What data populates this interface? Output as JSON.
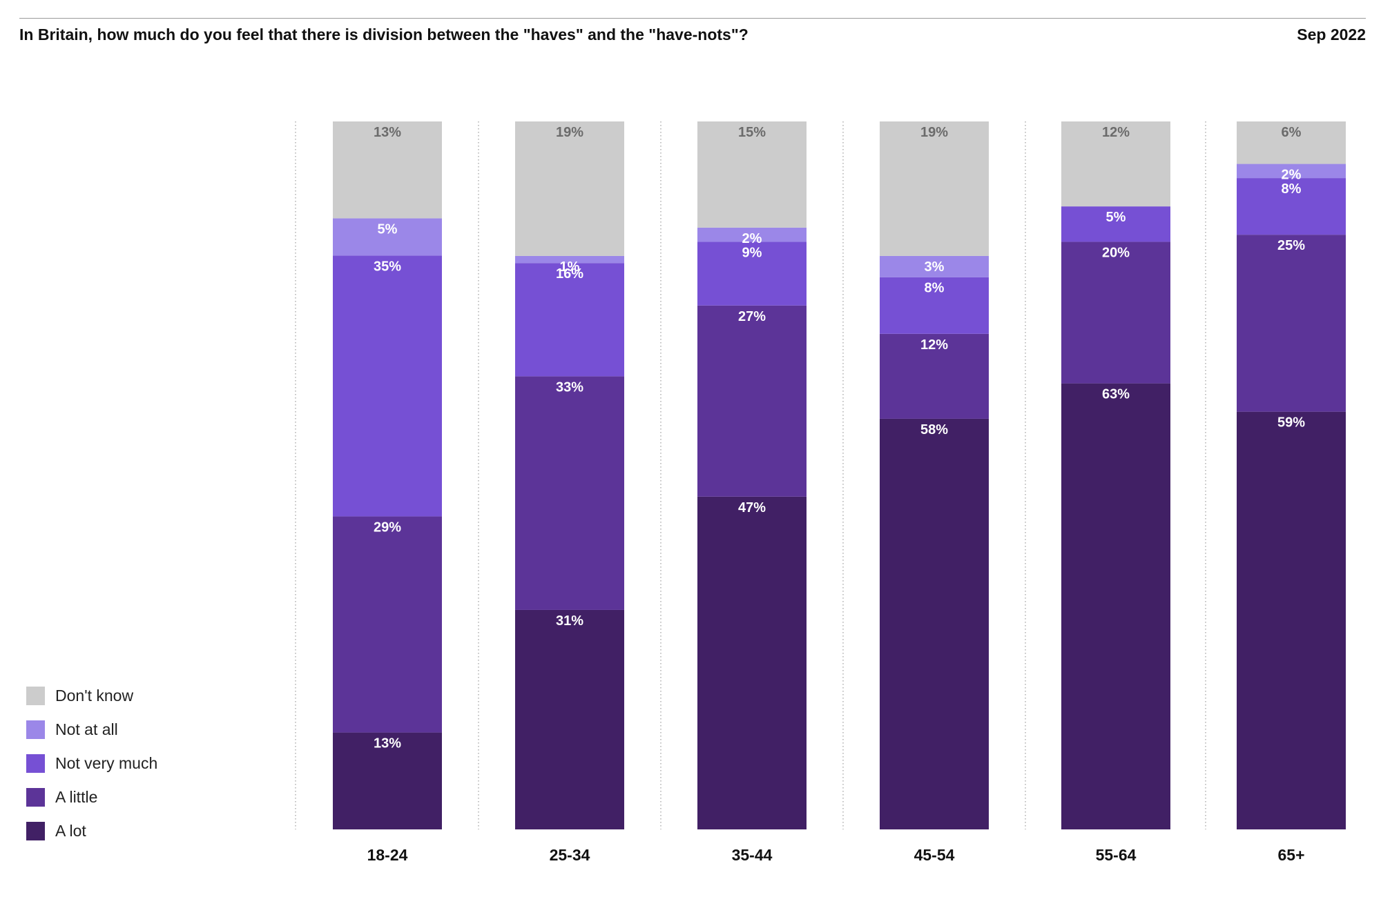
{
  "header": {
    "title": "In Britain, how much do you feel that there is division between the \"haves\" and the \"have-nots\"?",
    "date": "Sep 2022"
  },
  "legend": [
    {
      "label": "Don't know",
      "color": "#cccccc"
    },
    {
      "label": "Not at all",
      "color": "#9b87e8"
    },
    {
      "label": "Not very much",
      "color": "#7650d4"
    },
    {
      "label": "A little",
      "color": "#5c3498"
    },
    {
      "label": "A lot",
      "color": "#412065"
    }
  ],
  "chart_data": {
    "type": "bar",
    "stacked": true,
    "categories": [
      "18-24",
      "25-34",
      "35-44",
      "45-54",
      "55-64",
      "65+"
    ],
    "series": [
      {
        "name": "A lot",
        "color": "#412065",
        "values": [
          13,
          31,
          47,
          58,
          63,
          59
        ]
      },
      {
        "name": "A little",
        "color": "#5c3498",
        "values": [
          29,
          33,
          27,
          12,
          20,
          25
        ]
      },
      {
        "name": "Not very much",
        "color": "#7650d4",
        "values": [
          35,
          16,
          9,
          8,
          5,
          8
        ]
      },
      {
        "name": "Not at all",
        "color": "#9b87e8",
        "values": [
          5,
          1,
          2,
          3,
          0,
          2
        ]
      },
      {
        "name": "Don't know",
        "color": "#cccccc",
        "values": [
          13,
          19,
          15,
          19,
          12,
          6
        ]
      }
    ],
    "data_labels": [
      [
        "13%",
        "31%",
        "47%",
        "58%",
        "63%",
        "59%"
      ],
      [
        "29%",
        "33%",
        "27%",
        "12%",
        "20%",
        "25%"
      ],
      [
        "35%",
        "16%",
        "9%",
        "8%",
        "5%",
        "8%"
      ],
      [
        "5%",
        "1%",
        "2%",
        "3%",
        "",
        "2%"
      ],
      [
        "13%",
        "19%",
        "15%",
        "19%",
        "12%",
        "6%"
      ]
    ],
    "ylim": [
      0,
      100
    ],
    "grid": false,
    "legend_position": "bottom-left"
  }
}
